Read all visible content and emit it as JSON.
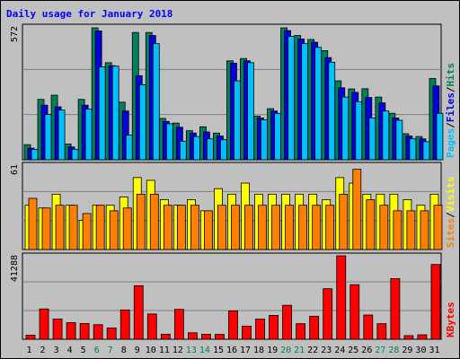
{
  "chart_data": {
    "title": "Daily usage for January 2018",
    "days": [
      "1",
      "2",
      "3",
      "4",
      "5",
      "6",
      "7",
      "8",
      "9",
      "10",
      "11",
      "12",
      "13",
      "14",
      "15",
      "16",
      "17",
      "18",
      "19",
      "20",
      "21",
      "22",
      "23",
      "24",
      "25",
      "26",
      "27",
      "28",
      "29",
      "30",
      "31"
    ],
    "weekend_days": [
      "6",
      "7",
      "13",
      "14",
      "20",
      "21",
      "27",
      "28"
    ],
    "colors": {
      "hits": "#00805c",
      "files": "#0000e0",
      "pages": "#00c0ff",
      "visits": "#ffff00",
      "sites": "#ff8000",
      "kbytes": "#ff0000",
      "title": "#0000ff",
      "weekday_tick": "#000000",
      "weekend_tick": "#00805c",
      "plot_bg": "#c0c0c0",
      "grid": "#808080"
    },
    "panels": [
      {
        "type": "bar",
        "id": "hits-files-pages",
        "ymax_label": "572",
        "ylim": [
          0,
          572
        ],
        "legend": [
          {
            "name": "Pages",
            "color": "#00c0ff"
          },
          {
            "name": "/",
            "color": "#000000"
          },
          {
            "name": "Files",
            "color": "#0000e0"
          },
          {
            "name": "/",
            "color": "#000000"
          },
          {
            "name": "Hits",
            "color": "#00805c"
          }
        ],
        "series": [
          {
            "key": "hits",
            "values": [
              65,
              260,
              278,
              68,
              260,
              568,
              418,
              248,
              548,
              548,
              178,
              158,
              125,
              142,
              115,
              426,
              436,
              188,
              220,
              568,
              535,
              518,
              470,
              340,
              305,
              306,
              270,
              200,
              112,
              100,
              350
            ]
          },
          {
            "key": "files",
            "values": [
              50,
              235,
              228,
              55,
              235,
              555,
              405,
              210,
              362,
              535,
              165,
              140,
              115,
              120,
              102,
              416,
              426,
              180,
              210,
              556,
              520,
              506,
              440,
              310,
              290,
              268,
              245,
              180,
              102,
              90,
              318
            ]
          },
          {
            "key": "pages",
            "values": [
              45,
              195,
              214,
              45,
              218,
              400,
              403,
              106,
              323,
              500,
              155,
              80,
              100,
              90,
              86,
              340,
              418,
              172,
              200,
              531,
              500,
              484,
              420,
              270,
              250,
              180,
              210,
              170,
              90,
              78,
              200
            ]
          }
        ]
      },
      {
        "type": "bar",
        "id": "visits-sites",
        "ymax_label": "61",
        "ylim": [
          0,
          61
        ],
        "legend": [
          {
            "name": "Sites",
            "color": "#ff8000"
          },
          {
            "name": "/",
            "color": "#000000"
          },
          {
            "name": "Visits",
            "color": "#ffff00"
          }
        ],
        "series": [
          {
            "key": "visits",
            "values": [
              32,
              30,
              40,
              32,
              21,
              32,
              32,
              38,
              52,
              50,
              36,
              32,
              36,
              28,
              44,
              40,
              48,
              40,
              40,
              40,
              40,
              40,
              36,
              52,
              48,
              40,
              40,
              40,
              36,
              32,
              40
            ]
          },
          {
            "key": "sites",
            "values": [
              37,
              30,
              32,
              32,
              26,
              32,
              28,
              30,
              40,
              40,
              32,
              32,
              32,
              28,
              32,
              32,
              32,
              32,
              32,
              32,
              32,
              32,
              32,
              40,
              58,
              36,
              32,
              28,
              28,
              28,
              32
            ]
          }
        ]
      },
      {
        "type": "bar",
        "id": "kbytes",
        "ymax_label": "41288",
        "ylim": [
          0,
          41288
        ],
        "legend": [
          {
            "name": "KBytes",
            "color": "#ff0000"
          }
        ],
        "series": [
          {
            "key": "kbytes",
            "values": [
              2000,
              15000,
              10000,
              8200,
              7800,
              7200,
              5600,
              14500,
              26500,
              12500,
              2500,
              14800,
              3200,
              2500,
              2400,
              14000,
              6500,
              10000,
              11800,
              16800,
              7700,
              11400,
              25000,
              41288,
              27000,
              12000,
              7700,
              30000,
              1800,
              2200,
              37000
            ]
          }
        ]
      }
    ]
  }
}
